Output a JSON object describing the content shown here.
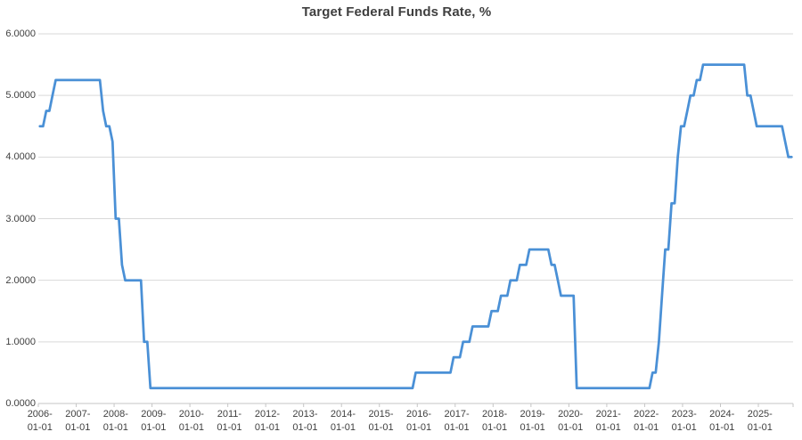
{
  "chart_data": {
    "type": "line",
    "title": "Target Federal Funds Rate, %",
    "series_name": "Target Federal Funds Rate",
    "x_frequency": "monthly",
    "x_start": "2006-01",
    "x_end": "2025-11",
    "x_tick_labels": [
      "2006-01-01",
      "2007-01-01",
      "2008-01-01",
      "2009-01-01",
      "2010-01-01",
      "2011-01-01",
      "2012-01-01",
      "2013-01-01",
      "2014-01-01",
      "2015-01-01",
      "2016-01-01",
      "2017-01-01",
      "2018-01-01",
      "2019-01-01",
      "2020-01-01",
      "2021-01-01",
      "2022-01-01",
      "2023-01-01",
      "2024-01-01",
      "2025-01-01"
    ],
    "y_tick_labels": [
      "0.0000",
      "1.0000",
      "2.0000",
      "3.0000",
      "4.0000",
      "5.0000",
      "6.0000"
    ],
    "ylim": [
      0,
      6
    ],
    "grid": "horizontal",
    "legend": "none",
    "line_color": "#4a90d6",
    "grid_color": "#d9d9d9",
    "axis_color": "#c6c6c6",
    "text_color": "#404040",
    "values_by_year": {
      "2006": [
        4.5,
        4.5,
        4.75,
        4.75,
        5.0,
        5.25,
        5.25,
        5.25,
        5.25,
        5.25,
        5.25,
        5.25
      ],
      "2007": [
        5.25,
        5.25,
        5.25,
        5.25,
        5.25,
        5.25,
        5.25,
        5.25,
        4.75,
        4.5,
        4.5,
        4.25
      ],
      "2008": [
        3.0,
        3.0,
        2.25,
        2.0,
        2.0,
        2.0,
        2.0,
        2.0,
        2.0,
        1.0,
        1.0,
        0.25
      ],
      "2009": [
        0.25,
        0.25,
        0.25,
        0.25,
        0.25,
        0.25,
        0.25,
        0.25,
        0.25,
        0.25,
        0.25,
        0.25
      ],
      "2010": [
        0.25,
        0.25,
        0.25,
        0.25,
        0.25,
        0.25,
        0.25,
        0.25,
        0.25,
        0.25,
        0.25,
        0.25
      ],
      "2011": [
        0.25,
        0.25,
        0.25,
        0.25,
        0.25,
        0.25,
        0.25,
        0.25,
        0.25,
        0.25,
        0.25,
        0.25
      ],
      "2012": [
        0.25,
        0.25,
        0.25,
        0.25,
        0.25,
        0.25,
        0.25,
        0.25,
        0.25,
        0.25,
        0.25,
        0.25
      ],
      "2013": [
        0.25,
        0.25,
        0.25,
        0.25,
        0.25,
        0.25,
        0.25,
        0.25,
        0.25,
        0.25,
        0.25,
        0.25
      ],
      "2014": [
        0.25,
        0.25,
        0.25,
        0.25,
        0.25,
        0.25,
        0.25,
        0.25,
        0.25,
        0.25,
        0.25,
        0.25
      ],
      "2015": [
        0.25,
        0.25,
        0.25,
        0.25,
        0.25,
        0.25,
        0.25,
        0.25,
        0.25,
        0.25,
        0.25,
        0.5
      ],
      "2016": [
        0.5,
        0.5,
        0.5,
        0.5,
        0.5,
        0.5,
        0.5,
        0.5,
        0.5,
        0.5,
        0.5,
        0.75
      ],
      "2017": [
        0.75,
        0.75,
        1.0,
        1.0,
        1.0,
        1.25,
        1.25,
        1.25,
        1.25,
        1.25,
        1.25,
        1.5
      ],
      "2018": [
        1.5,
        1.5,
        1.75,
        1.75,
        1.75,
        2.0,
        2.0,
        2.0,
        2.25,
        2.25,
        2.25,
        2.5
      ],
      "2019": [
        2.5,
        2.5,
        2.5,
        2.5,
        2.5,
        2.5,
        2.25,
        2.25,
        2.0,
        1.75,
        1.75,
        1.75
      ],
      "2020": [
        1.75,
        1.75,
        0.25,
        0.25,
        0.25,
        0.25,
        0.25,
        0.25,
        0.25,
        0.25,
        0.25,
        0.25
      ],
      "2021": [
        0.25,
        0.25,
        0.25,
        0.25,
        0.25,
        0.25,
        0.25,
        0.25,
        0.25,
        0.25,
        0.25,
        0.25
      ],
      "2022": [
        0.25,
        0.25,
        0.5,
        0.5,
        1.0,
        1.75,
        2.5,
        2.5,
        3.25,
        3.25,
        4.0,
        4.5
      ],
      "2023": [
        4.5,
        4.75,
        5.0,
        5.0,
        5.25,
        5.25,
        5.5,
        5.5,
        5.5,
        5.5,
        5.5,
        5.5
      ],
      "2024": [
        5.5,
        5.5,
        5.5,
        5.5,
        5.5,
        5.5,
        5.5,
        5.5,
        5.0,
        5.0,
        4.75,
        4.5
      ],
      "2025": [
        4.5,
        4.5,
        4.5,
        4.5,
        4.5,
        4.5,
        4.5,
        4.5,
        4.25,
        4.0,
        4.0
      ]
    }
  }
}
